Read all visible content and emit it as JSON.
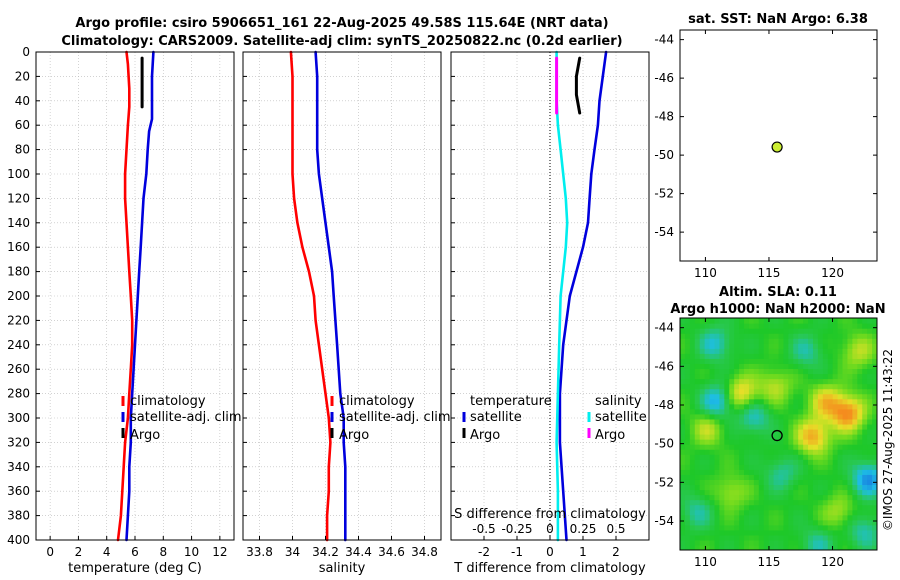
{
  "figure": {
    "title_line1": "Argo profile: csiro 5906651_161 22-Aug-2025 49.58S 115.64E (NRT data)",
    "title_line2": "Climatology: CARS2009. Satellite-adj clim: synTS_20250822.nc (0.2d earlier)",
    "credit": "©IMOS 27-Aug-2025 11:43:22"
  },
  "colors": {
    "climatology": "#ff0000",
    "satellite": "#0000dd",
    "argo": "#000000",
    "salinity_satellite": "#00eeee",
    "salinity_argo": "#ff00ff",
    "marker": "#ccee33"
  },
  "chart_data": [
    {
      "type": "line",
      "name": "temperature-profile",
      "xlabel": "temperature (deg C)",
      "ylabel": "",
      "xlim": [
        -1,
        13
      ],
      "ylim": [
        400,
        0
      ],
      "xticks": [
        0,
        2,
        4,
        6,
        8,
        10,
        12
      ],
      "yticks": [
        0,
        20,
        40,
        60,
        80,
        100,
        120,
        140,
        160,
        180,
        200,
        220,
        240,
        260,
        280,
        300,
        320,
        340,
        360,
        380,
        400
      ],
      "grid": true,
      "legend": [
        "climatology",
        "satellite-adj. clim",
        "Argo"
      ],
      "legend_position": "lower-right",
      "series": [
        {
          "name": "climatology",
          "color": "#ff0000",
          "points": [
            [
              5.4,
              0
            ],
            [
              5.5,
              10
            ],
            [
              5.6,
              30
            ],
            [
              5.6,
              45
            ],
            [
              5.5,
              60
            ],
            [
              5.4,
              80
            ],
            [
              5.3,
              100
            ],
            [
              5.3,
              120
            ],
            [
              5.4,
              140
            ],
            [
              5.5,
              160
            ],
            [
              5.6,
              180
            ],
            [
              5.7,
              200
            ],
            [
              5.8,
              220
            ],
            [
              5.8,
              240
            ],
            [
              5.7,
              260
            ],
            [
              5.6,
              280
            ],
            [
              5.5,
              300
            ],
            [
              5.3,
              320
            ],
            [
              5.2,
              340
            ],
            [
              5.1,
              360
            ],
            [
              5.0,
              380
            ],
            [
              4.8,
              400
            ]
          ]
        },
        {
          "name": "satellite-adj. clim",
          "color": "#0000dd",
          "points": [
            [
              7.3,
              0
            ],
            [
              7.2,
              20
            ],
            [
              7.2,
              40
            ],
            [
              7.2,
              55
            ],
            [
              7.0,
              65
            ],
            [
              6.9,
              80
            ],
            [
              6.8,
              100
            ],
            [
              6.6,
              120
            ],
            [
              6.5,
              140
            ],
            [
              6.4,
              160
            ],
            [
              6.3,
              180
            ],
            [
              6.2,
              200
            ],
            [
              6.1,
              220
            ],
            [
              6.0,
              240
            ],
            [
              5.9,
              260
            ],
            [
              5.8,
              280
            ],
            [
              5.7,
              300
            ],
            [
              5.7,
              320
            ],
            [
              5.6,
              340
            ],
            [
              5.6,
              360
            ],
            [
              5.5,
              380
            ],
            [
              5.4,
              400
            ]
          ]
        },
        {
          "name": "Argo",
          "color": "#000000",
          "points": [
            [
              6.5,
              5
            ],
            [
              6.5,
              20
            ],
            [
              6.5,
              35
            ],
            [
              6.5,
              45
            ]
          ]
        }
      ]
    },
    {
      "type": "line",
      "name": "salinity-profile",
      "xlabel": "salinity",
      "xlim": [
        33.7,
        34.9
      ],
      "ylim": [
        400,
        0
      ],
      "xticks": [
        "33.8",
        "34",
        "34.2",
        "34.4",
        "34.6",
        "34.8"
      ],
      "grid": true,
      "legend": [
        "climatology",
        "satellite-adj. clim",
        "Argo"
      ],
      "legend_position": "lower-right",
      "series": [
        {
          "name": "climatology",
          "color": "#ff0000",
          "points": [
            [
              33.99,
              0
            ],
            [
              34.0,
              20
            ],
            [
              34.0,
              40
            ],
            [
              34.0,
              60
            ],
            [
              34.0,
              80
            ],
            [
              34.0,
              100
            ],
            [
              34.01,
              120
            ],
            [
              34.03,
              140
            ],
            [
              34.06,
              160
            ],
            [
              34.1,
              180
            ],
            [
              34.13,
              200
            ],
            [
              34.14,
              220
            ],
            [
              34.16,
              240
            ],
            [
              34.18,
              260
            ],
            [
              34.2,
              280
            ],
            [
              34.22,
              300
            ],
            [
              34.23,
              320
            ],
            [
              34.22,
              340
            ],
            [
              34.22,
              360
            ],
            [
              34.21,
              380
            ],
            [
              34.21,
              400
            ]
          ]
        },
        {
          "name": "satellite-adj. clim",
          "color": "#0000dd",
          "points": [
            [
              34.14,
              0
            ],
            [
              34.15,
              20
            ],
            [
              34.15,
              40
            ],
            [
              34.15,
              60
            ],
            [
              34.15,
              80
            ],
            [
              34.16,
              100
            ],
            [
              34.18,
              120
            ],
            [
              34.2,
              140
            ],
            [
              34.22,
              160
            ],
            [
              34.24,
              180
            ],
            [
              34.25,
              200
            ],
            [
              34.26,
              220
            ],
            [
              34.27,
              240
            ],
            [
              34.28,
              260
            ],
            [
              34.29,
              280
            ],
            [
              34.31,
              300
            ],
            [
              34.31,
              320
            ],
            [
              34.32,
              340
            ],
            [
              34.32,
              360
            ],
            [
              34.32,
              380
            ],
            [
              34.32,
              400
            ]
          ]
        },
        {
          "name": "Argo",
          "color": "#000000",
          "points": []
        }
      ]
    },
    {
      "type": "line",
      "name": "difference-profile",
      "xlabel": "T difference from climatology",
      "x2label": "S difference from climatology",
      "xlim": [
        -3,
        3
      ],
      "ylim": [
        400,
        0
      ],
      "xticks": [
        "-2",
        "-1",
        "0",
        "1",
        "2"
      ],
      "x2ticks": [
        "-0.5",
        "-0.25",
        "0",
        "0.25",
        "0.5"
      ],
      "x2lim": [
        -0.75,
        0.75
      ],
      "grid": true,
      "legend_temperature_title": "temperature",
      "legend_salinity_title": "salinity",
      "legend_temperature": [
        "satellite",
        "Argo"
      ],
      "legend_salinity": [
        "satellite",
        "Argo"
      ],
      "series": [
        {
          "name": "temperature satellite",
          "color": "#0000dd",
          "points": [
            [
              1.7,
              0
            ],
            [
              1.6,
              20
            ],
            [
              1.5,
              40
            ],
            [
              1.45,
              60
            ],
            [
              1.35,
              80
            ],
            [
              1.25,
              100
            ],
            [
              1.2,
              120
            ],
            [
              1.15,
              140
            ],
            [
              1.0,
              160
            ],
            [
              0.8,
              180
            ],
            [
              0.6,
              200
            ],
            [
              0.4,
              240
            ],
            [
              0.3,
              280
            ],
            [
              0.3,
              320
            ],
            [
              0.4,
              360
            ],
            [
              0.5,
              400
            ]
          ]
        },
        {
          "name": "temperature Argo",
          "color": "#000000",
          "points": [
            [
              0.9,
              5
            ],
            [
              0.8,
              20
            ],
            [
              0.8,
              35
            ],
            [
              0.9,
              50
            ]
          ]
        },
        {
          "name": "salinity satellite",
          "color": "#00eeee",
          "points": [
            [
              0.05,
              0
            ],
            [
              0.05,
              40
            ],
            [
              0.06,
              60
            ],
            [
              0.08,
              80
            ],
            [
              0.1,
              100
            ],
            [
              0.12,
              120
            ],
            [
              0.13,
              140
            ],
            [
              0.12,
              160
            ],
            [
              0.1,
              180
            ],
            [
              0.08,
              200
            ],
            [
              0.07,
              240
            ],
            [
              0.06,
              280
            ],
            [
              0.05,
              320
            ],
            [
              0.06,
              360
            ],
            [
              0.06,
              400
            ]
          ]
        },
        {
          "name": "salinity Argo",
          "color": "#ff00ff",
          "points": [
            [
              0.05,
              5
            ],
            [
              0.05,
              20
            ],
            [
              0.05,
              35
            ],
            [
              0.05,
              50
            ]
          ]
        }
      ]
    },
    {
      "type": "scatter",
      "name": "sst-map",
      "title": "sat. SST: NaN Argo: 6.38",
      "xlim": [
        108,
        123.5
      ],
      "ylim": [
        -55.5,
        -43.5
      ],
      "xticks": [
        110,
        115,
        120
      ],
      "yticks": [
        -44,
        -46,
        -48,
        -50,
        -52,
        -54
      ],
      "points": [
        [
          115.64,
          -49.58
        ]
      ]
    },
    {
      "type": "heatmap",
      "name": "sla-map",
      "title_line1": "Altim. SLA: 0.11",
      "title_line2": "Argo h1000: NaN h2000: NaN",
      "xlim": [
        108,
        123.5
      ],
      "ylim": [
        -55.5,
        -43.5
      ],
      "xticks": [
        110,
        115,
        120
      ],
      "yticks": [
        -44,
        -46,
        -48,
        -50,
        -52,
        -54
      ],
      "points": [
        [
          115.64,
          -49.58
        ]
      ],
      "features": [
        {
          "lon": 112.8,
          "lat": -47.4,
          "value": 0.55
        },
        {
          "lon": 121.2,
          "lat": -48.4,
          "value": 0.75
        },
        {
          "lon": 118.5,
          "lat": -49.6,
          "value": 0.65
        },
        {
          "lon": 119.5,
          "lat": -47.8,
          "value": 0.5
        },
        {
          "lon": 115.5,
          "lat": -47.0,
          "value": 0.35
        },
        {
          "lon": 110.2,
          "lat": -49.2,
          "value": 0.35
        },
        {
          "lon": 122.0,
          "lat": -45.2,
          "value": 0.35
        },
        {
          "lon": 112.0,
          "lat": -52.5,
          "value": 0.3
        },
        {
          "lon": 120.5,
          "lat": -53.5,
          "value": 0.3
        },
        {
          "lon": 111.0,
          "lat": -47.8,
          "value": -0.55
        },
        {
          "lon": 113.8,
          "lat": -48.6,
          "value": -0.4
        },
        {
          "lon": 122.8,
          "lat": -51.8,
          "value": -0.6
        },
        {
          "lon": 110.8,
          "lat": -44.8,
          "value": -0.4
        },
        {
          "lon": 116.0,
          "lat": -51.5,
          "value": -0.3
        },
        {
          "lon": 118.0,
          "lat": -45.2,
          "value": -0.3
        },
        {
          "lon": 109.3,
          "lat": -53.5,
          "value": -0.3
        },
        {
          "lon": 122.5,
          "lat": -54.5,
          "value": -0.35
        },
        {
          "lon": 118.8,
          "lat": -55.2,
          "value": -0.3
        }
      ]
    }
  ]
}
